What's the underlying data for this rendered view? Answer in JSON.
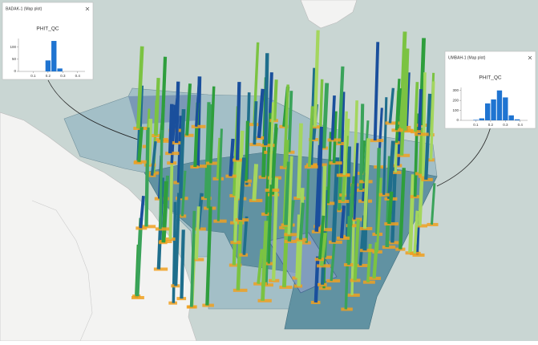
{
  "chart_data": [
    {
      "type": "histogram",
      "window_title": "BADAK-1 (Map plot)",
      "title": "PHIT_QC",
      "bins": [
        0.18,
        0.22,
        0.26,
        0.3
      ],
      "values": [
        45,
        125,
        12
      ],
      "color": "#1f74d1",
      "xlim": [
        0,
        0.45
      ],
      "xticks": [
        0.1,
        0.2,
        0.3,
        0.4
      ],
      "ylim": [
        0,
        135
      ],
      "yticks": [
        0,
        50,
        100
      ]
    },
    {
      "type": "histogram",
      "window_title": "UMBAH-1 (Map plot)",
      "title": "PHIT_QC",
      "bins": [
        0.08,
        0.12,
        0.16,
        0.2,
        0.24,
        0.28,
        0.32,
        0.36,
        0.4
      ],
      "values": [
        5,
        20,
        170,
        210,
        300,
        230,
        50,
        10
      ],
      "color": "#1f74d1",
      "xlim": [
        0,
        0.45
      ],
      "xticks": [
        0.1,
        0.2,
        0.3,
        0.4
      ],
      "ylim": [
        0,
        330
      ],
      "yticks": [
        0,
        100,
        200,
        300
      ]
    }
  ]
}
